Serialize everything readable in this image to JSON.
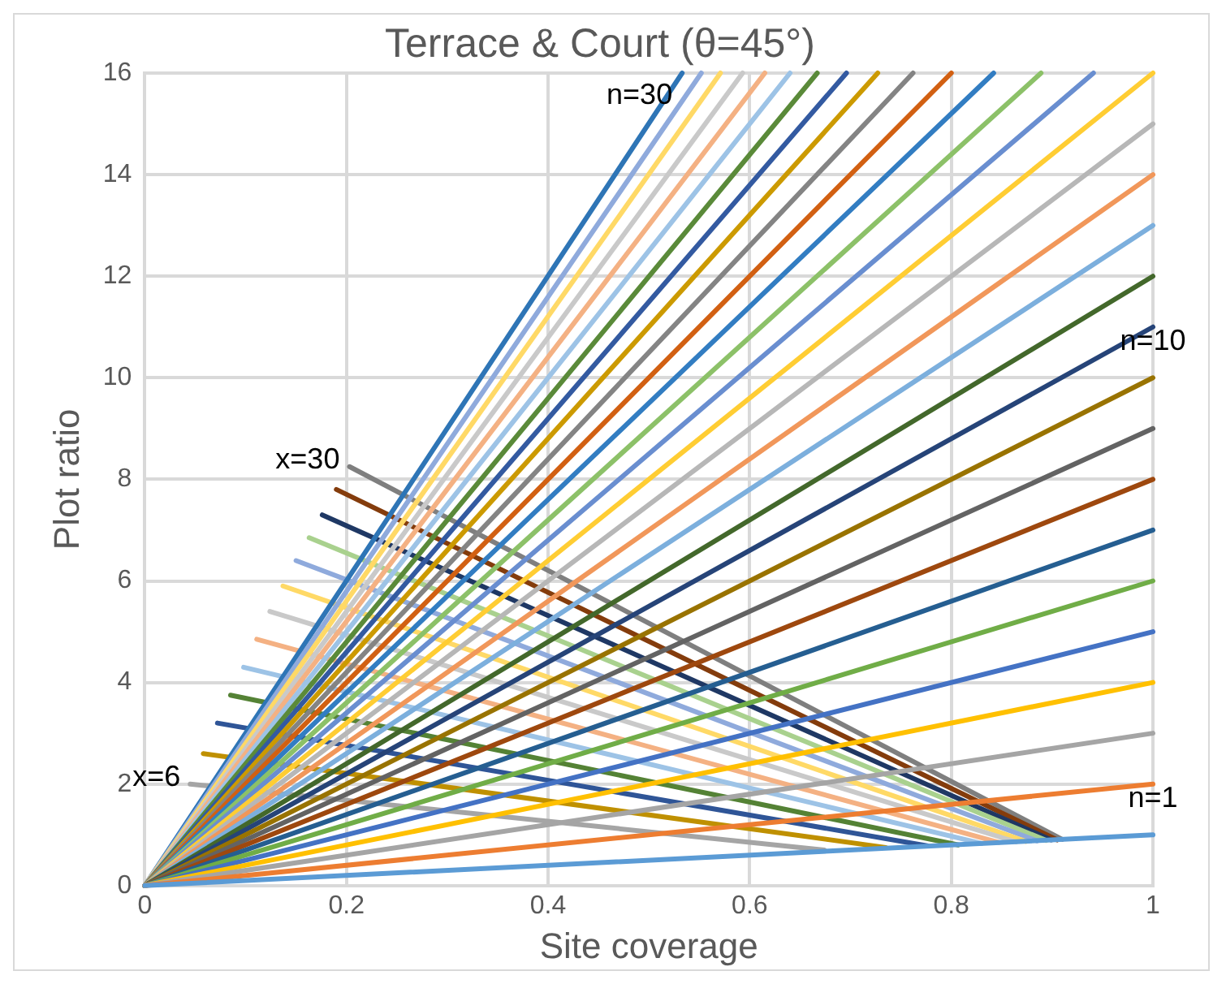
{
  "chart_data": {
    "type": "line",
    "title": "Terrace & Court (θ=45°)",
    "xlabel": "Site coverage",
    "ylabel": "Plot ratio",
    "xlim": [
      0,
      1
    ],
    "xticks": [
      0,
      0.2,
      0.4,
      0.6,
      0.8,
      1
    ],
    "ylim": [
      0,
      16
    ],
    "yticks": [
      0,
      2,
      4,
      6,
      8,
      10,
      12,
      14,
      16
    ],
    "grid": true,
    "legend": false,
    "marker": "none",
    "line_style": "solid",
    "annotations": [
      {
        "text": "n=30",
        "x": 0.533,
        "y": 16
      },
      {
        "text": "n=10",
        "x": 1,
        "y": 10
      },
      {
        "text": "n=1",
        "x": 1,
        "y": 1
      },
      {
        "text": "x=30",
        "x": 0.203,
        "y": 8.25
      },
      {
        "text": "x=6",
        "x": 0.045,
        "y": 2.0
      }
    ],
    "series": [
      {
        "color": "#5B9BD5",
        "x": [
          0,
          1
        ],
        "values": [
          0,
          1
        ]
      },
      {
        "color": "#ED7D31",
        "x": [
          0,
          1
        ],
        "values": [
          0,
          2
        ]
      },
      {
        "color": "#A5A5A5",
        "x": [
          0,
          1
        ],
        "values": [
          0,
          3
        ]
      },
      {
        "color": "#FFC000",
        "x": [
          0,
          1
        ],
        "values": [
          0,
          4
        ]
      },
      {
        "color": "#4472C4",
        "x": [
          0,
          1
        ],
        "values": [
          0,
          5
        ]
      },
      {
        "color": "#70AD47",
        "x": [
          0,
          1
        ],
        "values": [
          0,
          6
        ]
      },
      {
        "color": "#255E91",
        "x": [
          0,
          1
        ],
        "values": [
          0,
          7
        ]
      },
      {
        "color": "#9E480E",
        "x": [
          0,
          1
        ],
        "values": [
          0,
          8
        ]
      },
      {
        "color": "#636363",
        "x": [
          0,
          1
        ],
        "values": [
          0,
          9
        ]
      },
      {
        "color": "#997300",
        "x": [
          0,
          1
        ],
        "values": [
          0,
          10
        ]
      },
      {
        "color": "#264478",
        "x": [
          0,
          1
        ],
        "values": [
          0,
          11
        ]
      },
      {
        "color": "#43682B",
        "x": [
          0,
          1
        ],
        "values": [
          0,
          12
        ]
      },
      {
        "color": "#7CAFDD",
        "x": [
          0,
          1
        ],
        "values": [
          0,
          13
        ]
      },
      {
        "color": "#F1975A",
        "x": [
          0,
          1
        ],
        "values": [
          0,
          14
        ]
      },
      {
        "color": "#B7B7B7",
        "x": [
          0,
          1
        ],
        "values": [
          0,
          15
        ]
      },
      {
        "color": "#FFCD33",
        "x": [
          0,
          1
        ],
        "values": [
          0,
          16
        ]
      },
      {
        "color": "#698ED0",
        "x": [
          0,
          0.941
        ],
        "values": [
          0,
          16
        ]
      },
      {
        "color": "#8CC168",
        "x": [
          0,
          0.889
        ],
        "values": [
          0,
          16
        ]
      },
      {
        "color": "#327DC2",
        "x": [
          0,
          0.842
        ],
        "values": [
          0,
          16
        ]
      },
      {
        "color": "#D26012",
        "x": [
          0,
          0.8
        ],
        "values": [
          0,
          16
        ]
      },
      {
        "color": "#848484",
        "x": [
          0,
          0.762
        ],
        "values": [
          0,
          16
        ]
      },
      {
        "color": "#CC9A00",
        "x": [
          0,
          0.727
        ],
        "values": [
          0,
          16
        ]
      },
      {
        "color": "#335AA1",
        "x": [
          0,
          0.696
        ],
        "values": [
          0,
          16
        ]
      },
      {
        "color": "#5A8A39",
        "x": [
          0,
          0.667
        ],
        "values": [
          0,
          16
        ]
      },
      {
        "color": "#9DC3E6",
        "x": [
          0,
          0.64
        ],
        "values": [
          0,
          16
        ]
      },
      {
        "color": "#F4B183",
        "x": [
          0,
          0.615
        ],
        "values": [
          0,
          16
        ]
      },
      {
        "color": "#C9C9C9",
        "x": [
          0,
          0.593
        ],
        "values": [
          0,
          16
        ]
      },
      {
        "color": "#FFD966",
        "x": [
          0,
          0.571
        ],
        "values": [
          0,
          16
        ]
      },
      {
        "color": "#8FAADC",
        "x": [
          0,
          0.552
        ],
        "values": [
          0,
          16
        ]
      },
      {
        "color": "#2E75B6",
        "x": [
          0,
          0.533
        ],
        "values": [
          0,
          16
        ]
      },
      {
        "color": "#A5A5A5",
        "x": [
          0.045,
          0.674
        ],
        "values": [
          2.0,
          0.7
        ]
      },
      {
        "color": "#BF9000",
        "x": [
          0.058,
          0.735
        ],
        "values": [
          2.6,
          0.75
        ]
      },
      {
        "color": "#2F5597",
        "x": [
          0.072,
          0.777
        ],
        "values": [
          3.2,
          0.78
        ]
      },
      {
        "color": "#548235",
        "x": [
          0.085,
          0.807
        ],
        "values": [
          3.75,
          0.8
        ]
      },
      {
        "color": "#9DC3E6",
        "x": [
          0.098,
          0.83
        ],
        "values": [
          4.3,
          0.83
        ]
      },
      {
        "color": "#F4B183",
        "x": [
          0.111,
          0.847
        ],
        "values": [
          4.85,
          0.85
        ]
      },
      {
        "color": "#C9C9C9",
        "x": [
          0.124,
          0.864
        ],
        "values": [
          5.4,
          0.86
        ]
      },
      {
        "color": "#FFD966",
        "x": [
          0.137,
          0.874
        ],
        "values": [
          5.9,
          0.87
        ]
      },
      {
        "color": "#8FAADC",
        "x": [
          0.15,
          0.885
        ],
        "values": [
          6.4,
          0.88
        ]
      },
      {
        "color": "#A9D18E",
        "x": [
          0.163,
          0.894
        ],
        "values": [
          6.85,
          0.89
        ]
      },
      {
        "color": "#1F3864",
        "x": [
          0.176,
          0.899
        ],
        "values": [
          7.3,
          0.9
        ]
      },
      {
        "color": "#843C0C",
        "x": [
          0.19,
          0.905
        ],
        "values": [
          7.8,
          0.9
        ]
      },
      {
        "color": "#7F7F7F",
        "x": [
          0.203,
          0.91
        ],
        "values": [
          8.25,
          0.91
        ]
      }
    ]
  }
}
